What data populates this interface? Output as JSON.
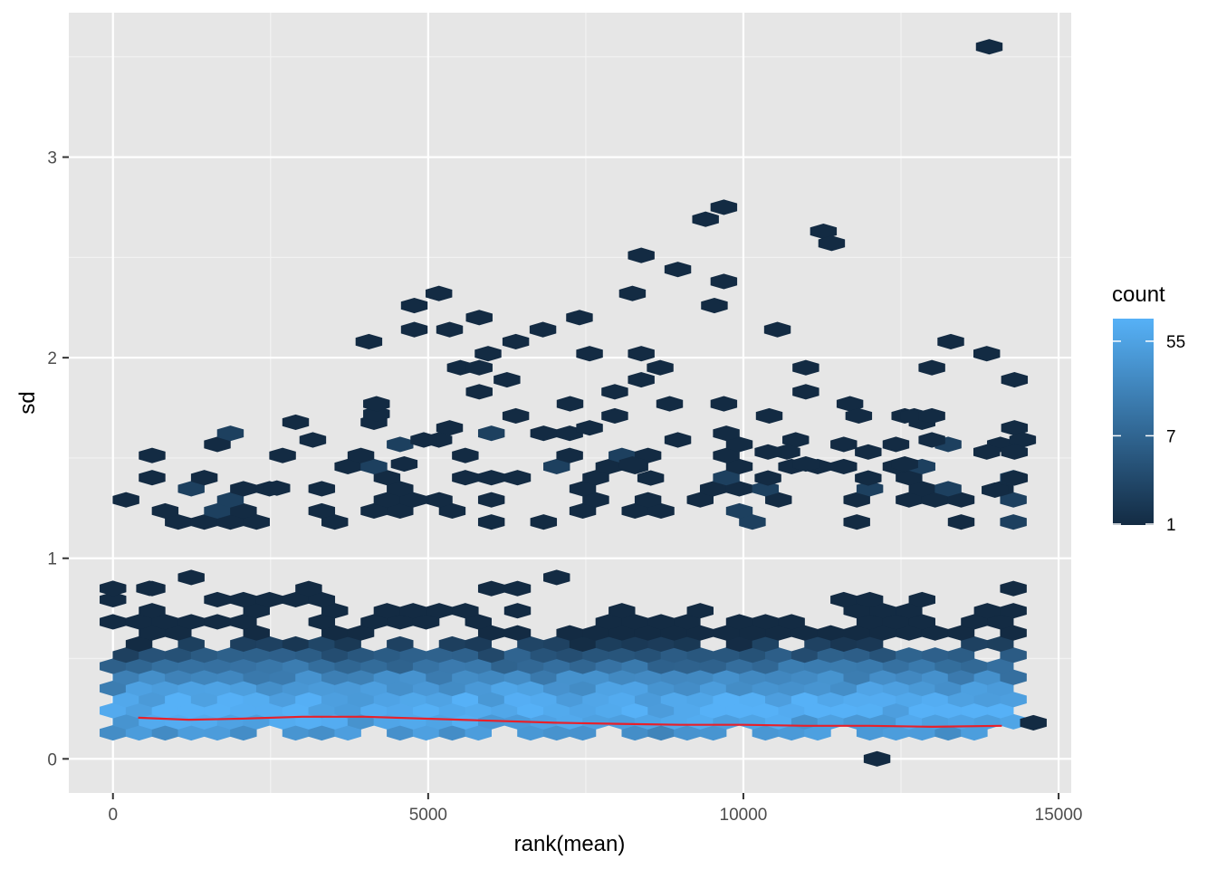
{
  "chart_data": {
    "type": "hexbin",
    "xlabel": "rank(mean)",
    "ylabel": "sd",
    "xlim": [
      -700,
      15200
    ],
    "ylim": [
      -0.17,
      3.72
    ],
    "x_ticks": [
      0,
      5000,
      10000,
      15000
    ],
    "x_tick_labels": [
      "0",
      "5000",
      "10000",
      "15000"
    ],
    "y_ticks": [
      0,
      1,
      2,
      3
    ],
    "y_tick_labels": [
      "0",
      "1",
      "2",
      "3"
    ],
    "grid": true,
    "legend": {
      "title": "count",
      "position": "right",
      "scale": "log",
      "breaks": [
        1,
        7,
        55
      ],
      "break_labels": [
        "1",
        "7",
        "55"
      ],
      "min": 1,
      "max": 90,
      "low_color": "#132B43",
      "high_color": "#56B1F7"
    },
    "colors": {
      "panel_background": "#e6e6e6",
      "grid_major": "#ffffff",
      "trend_line": "#e8202a"
    },
    "trend": {
      "label": "smooth",
      "x": [
        400,
        1200,
        2000,
        3000,
        4000,
        5000,
        6000,
        7000,
        8000,
        9000,
        10000,
        11000,
        12000,
        13000,
        14100
      ],
      "y": [
        0.205,
        0.195,
        0.2,
        0.21,
        0.21,
        0.2,
        0.19,
        0.18,
        0.175,
        0.17,
        0.17,
        0.165,
        0.165,
        0.16,
        0.165
      ]
    },
    "sparse_points": [
      [
        0,
        0.85
      ],
      [
        580,
        0.85
      ],
      [
        2600,
        1.35
      ],
      [
        3170,
        1.59
      ],
      [
        4060,
        2.08
      ],
      [
        4180,
        1.72
      ],
      [
        4180,
        1.77
      ],
      [
        4780,
        2.26
      ],
      [
        4780,
        2.14
      ],
      [
        5170,
        2.32
      ],
      [
        5340,
        2.14
      ],
      [
        5340,
        1.65
      ],
      [
        5170,
        1.59
      ],
      [
        4930,
        1.59
      ],
      [
        5510,
        1.95
      ],
      [
        5810,
        2.2
      ],
      [
        5810,
        1.83
      ],
      [
        5950,
        2.02
      ],
      [
        6250,
        1.89
      ],
      [
        6390,
        2.08
      ],
      [
        6390,
        1.71
      ],
      [
        6820,
        2.14
      ],
      [
        7250,
        1.77
      ],
      [
        7400,
        2.2
      ],
      [
        7560,
        2.02
      ],
      [
        7560,
        1.65
      ],
      [
        7960,
        1.83
      ],
      [
        7960,
        1.71
      ],
      [
        8240,
        2.32
      ],
      [
        8380,
        2.51
      ],
      [
        8380,
        2.02
      ],
      [
        8380,
        1.89
      ],
      [
        8680,
        1.95
      ],
      [
        8960,
        2.44
      ],
      [
        8830,
        1.77
      ],
      [
        8960,
        1.59
      ],
      [
        9400,
        2.69
      ],
      [
        9540,
        2.26
      ],
      [
        9690,
        2.75
      ],
      [
        9690,
        2.38
      ],
      [
        9690,
        1.77
      ],
      [
        10540,
        2.14
      ],
      [
        10410,
        1.71
      ],
      [
        10990,
        1.95
      ],
      [
        10990,
        1.83
      ],
      [
        11270,
        2.63
      ],
      [
        11400,
        2.57
      ],
      [
        11690,
        1.77
      ],
      [
        11830,
        1.71
      ],
      [
        12560,
        1.71
      ],
      [
        12710,
        1.71
      ],
      [
        12990,
        1.71
      ],
      [
        12990,
        1.95
      ],
      [
        13290,
        2.08
      ],
      [
        13860,
        2.02
      ],
      [
        14300,
        1.89
      ],
      [
        14300,
        1.65
      ],
      [
        14430,
        1.59
      ],
      [
        13860,
        1.53
      ],
      [
        13990,
        1.34
      ],
      [
        13900,
        3.55
      ],
      [
        12120,
        0.0
      ],
      [
        14600,
        0.18
      ],
      [
        11980,
        1.53
      ],
      [
        11980,
        1.4
      ],
      [
        12560,
        1.47
      ],
      [
        12990,
        1.59
      ],
      [
        10990,
        1.47
      ],
      [
        10830,
        1.59
      ],
      [
        10690,
        1.53
      ],
      [
        10390,
        1.53
      ],
      [
        10390,
        1.4
      ],
      [
        8530,
        1.4
      ],
      [
        8240,
        1.47
      ],
      [
        5810,
        1.95
      ],
      [
        4620,
        1.47
      ],
      [
        14300,
        1.4
      ],
      [
        14300,
        1.53
      ]
    ]
  }
}
